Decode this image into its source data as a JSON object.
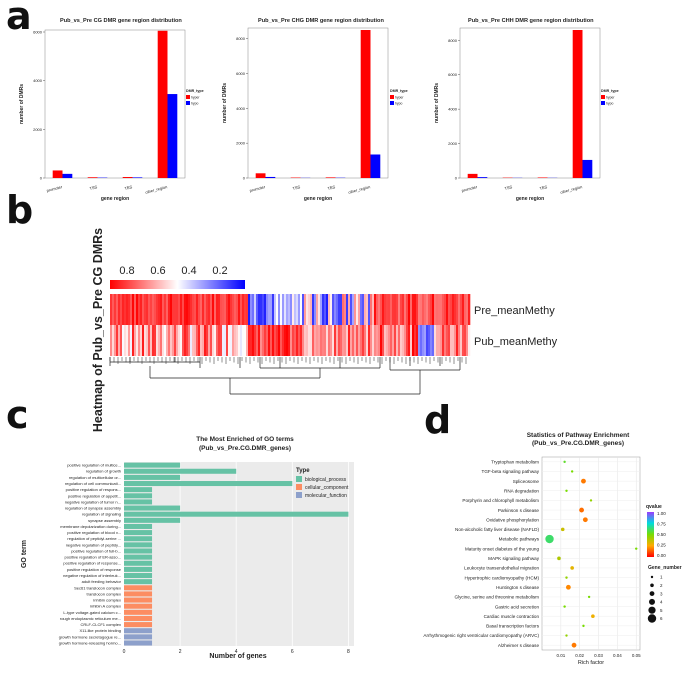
{
  "panel_labels": {
    "a": "a",
    "b": "b",
    "c": "c",
    "d": "d"
  },
  "chart_data": [
    {
      "id": "a1",
      "type": "bar",
      "title": "Pub_vs_Pre CG DMR gene region distribution",
      "categories": [
        "promoter",
        "TSS",
        "TES",
        "other_region"
      ],
      "series": [
        {
          "name": "hyper",
          "color": "#ff0000",
          "values": [
            310,
            30,
            40,
            6050
          ]
        },
        {
          "name": "hypo",
          "color": "#0000ff",
          "values": [
            170,
            15,
            25,
            3450
          ]
        }
      ],
      "legend_title": "DMR_type",
      "xlabel": "gene region",
      "ylabel": "number of DMRs",
      "yticks": [
        0,
        2000,
        4000,
        6000
      ],
      "ylim": [
        0,
        6000
      ]
    },
    {
      "id": "a2",
      "type": "bar",
      "title": "Pub_vs_Pre CHG DMR gene region distribution",
      "categories": [
        "promoter",
        "TSS",
        "TES",
        "other_region"
      ],
      "series": [
        {
          "name": "hyper",
          "color": "#ff0000",
          "values": [
            270,
            25,
            35,
            8500
          ]
        },
        {
          "name": "hypo",
          "color": "#0000ff",
          "values": [
            60,
            10,
            15,
            1350
          ]
        }
      ],
      "legend_title": "DMR_type",
      "xlabel": "gene region",
      "ylabel": "number of DMRs",
      "yticks": [
        0,
        2000,
        4000,
        6000,
        8000
      ],
      "ylim": [
        0,
        8500
      ]
    },
    {
      "id": "a3",
      "type": "bar",
      "title": "Pub_vs_Pre CHH DMR gene region distribution",
      "categories": [
        "promoter",
        "TSS",
        "TES",
        "other_region"
      ],
      "series": [
        {
          "name": "hyper",
          "color": "#ff0000",
          "values": [
            240,
            20,
            30,
            8600
          ]
        },
        {
          "name": "hypo",
          "color": "#0000ff",
          "values": [
            50,
            10,
            10,
            1050
          ]
        }
      ],
      "legend_title": "DMR_type",
      "xlabel": "gene region",
      "ylabel": "number of DMRs",
      "yticks": [
        0,
        2000,
        4000,
        6000,
        8000
      ],
      "ylim": [
        0,
        8600
      ]
    },
    {
      "id": "b",
      "type": "heatmap",
      "title": "Heatmap of Pub_vs_Pre CG DMRs",
      "rows": [
        "Pre_meanMethy",
        "Pub_meanMethy"
      ],
      "colorbar_ticks": [
        "0.8",
        "0.6",
        "0.4",
        "0.2"
      ],
      "colorbar_colors": [
        "#ff0000",
        "#ffffff",
        "#0000ff"
      ]
    },
    {
      "id": "c",
      "type": "bar",
      "orientation": "horizontal",
      "title": "The Most Enriched of GO terms",
      "subtitle": "(Pub_vs_Pre.CG.DMR_genes)",
      "xlabel": "Number of genes",
      "ylabel": "GO term",
      "xticks": [
        0,
        2,
        4,
        6,
        8
      ],
      "xlim": [
        0,
        8.2
      ],
      "legend_title": "Type",
      "types": [
        {
          "name": "biological_process",
          "color": "#66c2a5"
        },
        {
          "name": "cellular_component",
          "color": "#fc8d62"
        },
        {
          "name": "molecular_function",
          "color": "#8da0cb"
        }
      ],
      "terms": [
        {
          "label": "positive regulation of multice...",
          "value": 2,
          "type": 0
        },
        {
          "label": "regulation of growth",
          "value": 4,
          "type": 0
        },
        {
          "label": "regulation of multicellular or...",
          "value": 2,
          "type": 0
        },
        {
          "label": "regulation of cell communicati...",
          "value": 6,
          "type": 0
        },
        {
          "label": "positive regulation of respons...",
          "value": 1,
          "type": 0
        },
        {
          "label": "positive regulation of appetit...",
          "value": 1,
          "type": 0
        },
        {
          "label": "negative regulation of tumor n...",
          "value": 1,
          "type": 0
        },
        {
          "label": "regulation of synapse assembly",
          "value": 2,
          "type": 0
        },
        {
          "label": "regulation of signaling",
          "value": 8,
          "type": 0
        },
        {
          "label": "synapse assembly",
          "value": 2,
          "type": 0
        },
        {
          "label": "membrane depolarization during...",
          "value": 1,
          "type": 0
        },
        {
          "label": "positive regulation of blood v...",
          "value": 1,
          "type": 0
        },
        {
          "label": "regulation of peptidyl-serine ...",
          "value": 1,
          "type": 0
        },
        {
          "label": "negative regulation of peptidy...",
          "value": 1,
          "type": 0
        },
        {
          "label": "positive regulation of full-b...",
          "value": 1,
          "type": 0
        },
        {
          "label": "positive regulation of ER-asso...",
          "value": 1,
          "type": 0
        },
        {
          "label": "positive regulation of response...",
          "value": 1,
          "type": 0
        },
        {
          "label": "positive regulation of response",
          "value": 1,
          "type": 0
        },
        {
          "label": "negative regulation of interleuk...",
          "value": 1,
          "type": 0
        },
        {
          "label": "adult feeding behavior",
          "value": 1,
          "type": 0
        },
        {
          "label": "Sec61 translocon complex",
          "value": 1,
          "type": 1
        },
        {
          "label": "translocon complex",
          "value": 1,
          "type": 1
        },
        {
          "label": "inhibin complex",
          "value": 1,
          "type": 1
        },
        {
          "label": "inhibin A complex",
          "value": 1,
          "type": 1
        },
        {
          "label": "L-type voltage-gated calcium c...",
          "value": 1,
          "type": 1
        },
        {
          "label": "rough endoplasmic reticulum me...",
          "value": 1,
          "type": 1
        },
        {
          "label": "CRLF-CLCF1 complex",
          "value": 1,
          "type": 1
        },
        {
          "label": "X11-like protein binding",
          "value": 1,
          "type": 2
        },
        {
          "label": "growth hormone secretagogue re...",
          "value": 1,
          "type": 2
        },
        {
          "label": "growth hormone-releasing hormo...",
          "value": 1,
          "type": 2
        }
      ]
    },
    {
      "id": "d",
      "type": "scatter",
      "title": "Statistics of Pathway Enrichment",
      "subtitle": "(Pub_vs_Pre.CG.DMR_genes)",
      "xlabel": "Rich factor",
      "xticks": [
        0.01,
        0.02,
        0.03,
        0.04,
        0.05
      ],
      "xlim": [
        0.0,
        0.052
      ],
      "color_legend_title": "qvalue",
      "color_ticks": [
        "1.00",
        "0.75",
        "0.50",
        "0.25",
        "0.00"
      ],
      "size_legend_title": "Gene_number",
      "size_ticks": [
        1,
        2,
        3,
        4,
        5,
        6
      ],
      "pathways": [
        {
          "name": "Tryptophan metabolism",
          "rich": 0.012,
          "genes": 1,
          "q": 0.55
        },
        {
          "name": "TGF-beta signaling pathway",
          "rich": 0.016,
          "genes": 1,
          "q": 0.5
        },
        {
          "name": "Spliceosome",
          "rich": 0.022,
          "genes": 3,
          "q": 0.18
        },
        {
          "name": "RNA degradation",
          "rich": 0.013,
          "genes": 1,
          "q": 0.5
        },
        {
          "name": "Porphyrin and chlorophyll metabolism",
          "rich": 0.026,
          "genes": 1,
          "q": 0.45
        },
        {
          "name": "Parkinson s disease",
          "rich": 0.021,
          "genes": 3,
          "q": 0.16
        },
        {
          "name": "Oxidative phosphorylation",
          "rich": 0.023,
          "genes": 3,
          "q": 0.18
        },
        {
          "name": "Non-alcoholic fatty liver disease (NAFLD)",
          "rich": 0.011,
          "genes": 2,
          "q": 0.35
        },
        {
          "name": "Metabolic pathways",
          "rich": 0.004,
          "genes": 6,
          "q": 0.62
        },
        {
          "name": "Maturity onset diabetes of the young",
          "rich": 0.05,
          "genes": 1,
          "q": 0.5
        },
        {
          "name": "MAPK signaling pathway",
          "rich": 0.009,
          "genes": 2,
          "q": 0.4
        },
        {
          "name": "Leukocyte transendothelial migration",
          "rich": 0.016,
          "genes": 2,
          "q": 0.3
        },
        {
          "name": "Hypertrophic cardiomyopathy (HCM)",
          "rich": 0.013,
          "genes": 1,
          "q": 0.45
        },
        {
          "name": "Huntington s disease",
          "rich": 0.014,
          "genes": 3,
          "q": 0.2
        },
        {
          "name": "Glycine, serine and threonine metabolism",
          "rich": 0.025,
          "genes": 1,
          "q": 0.5
        },
        {
          "name": "Gastric acid secretion",
          "rich": 0.012,
          "genes": 1,
          "q": 0.5
        },
        {
          "name": "Cardiac muscle contraction",
          "rich": 0.027,
          "genes": 2,
          "q": 0.28
        },
        {
          "name": "Basal transcription factors",
          "rich": 0.022,
          "genes": 1,
          "q": 0.5
        },
        {
          "name": "Arrhythmogenic right ventricular cardiomyopathy (ARVC)",
          "rich": 0.013,
          "genes": 1,
          "q": 0.45
        },
        {
          "name": "Alzheimer s disease",
          "rich": 0.017,
          "genes": 3,
          "q": 0.18
        }
      ]
    }
  ]
}
